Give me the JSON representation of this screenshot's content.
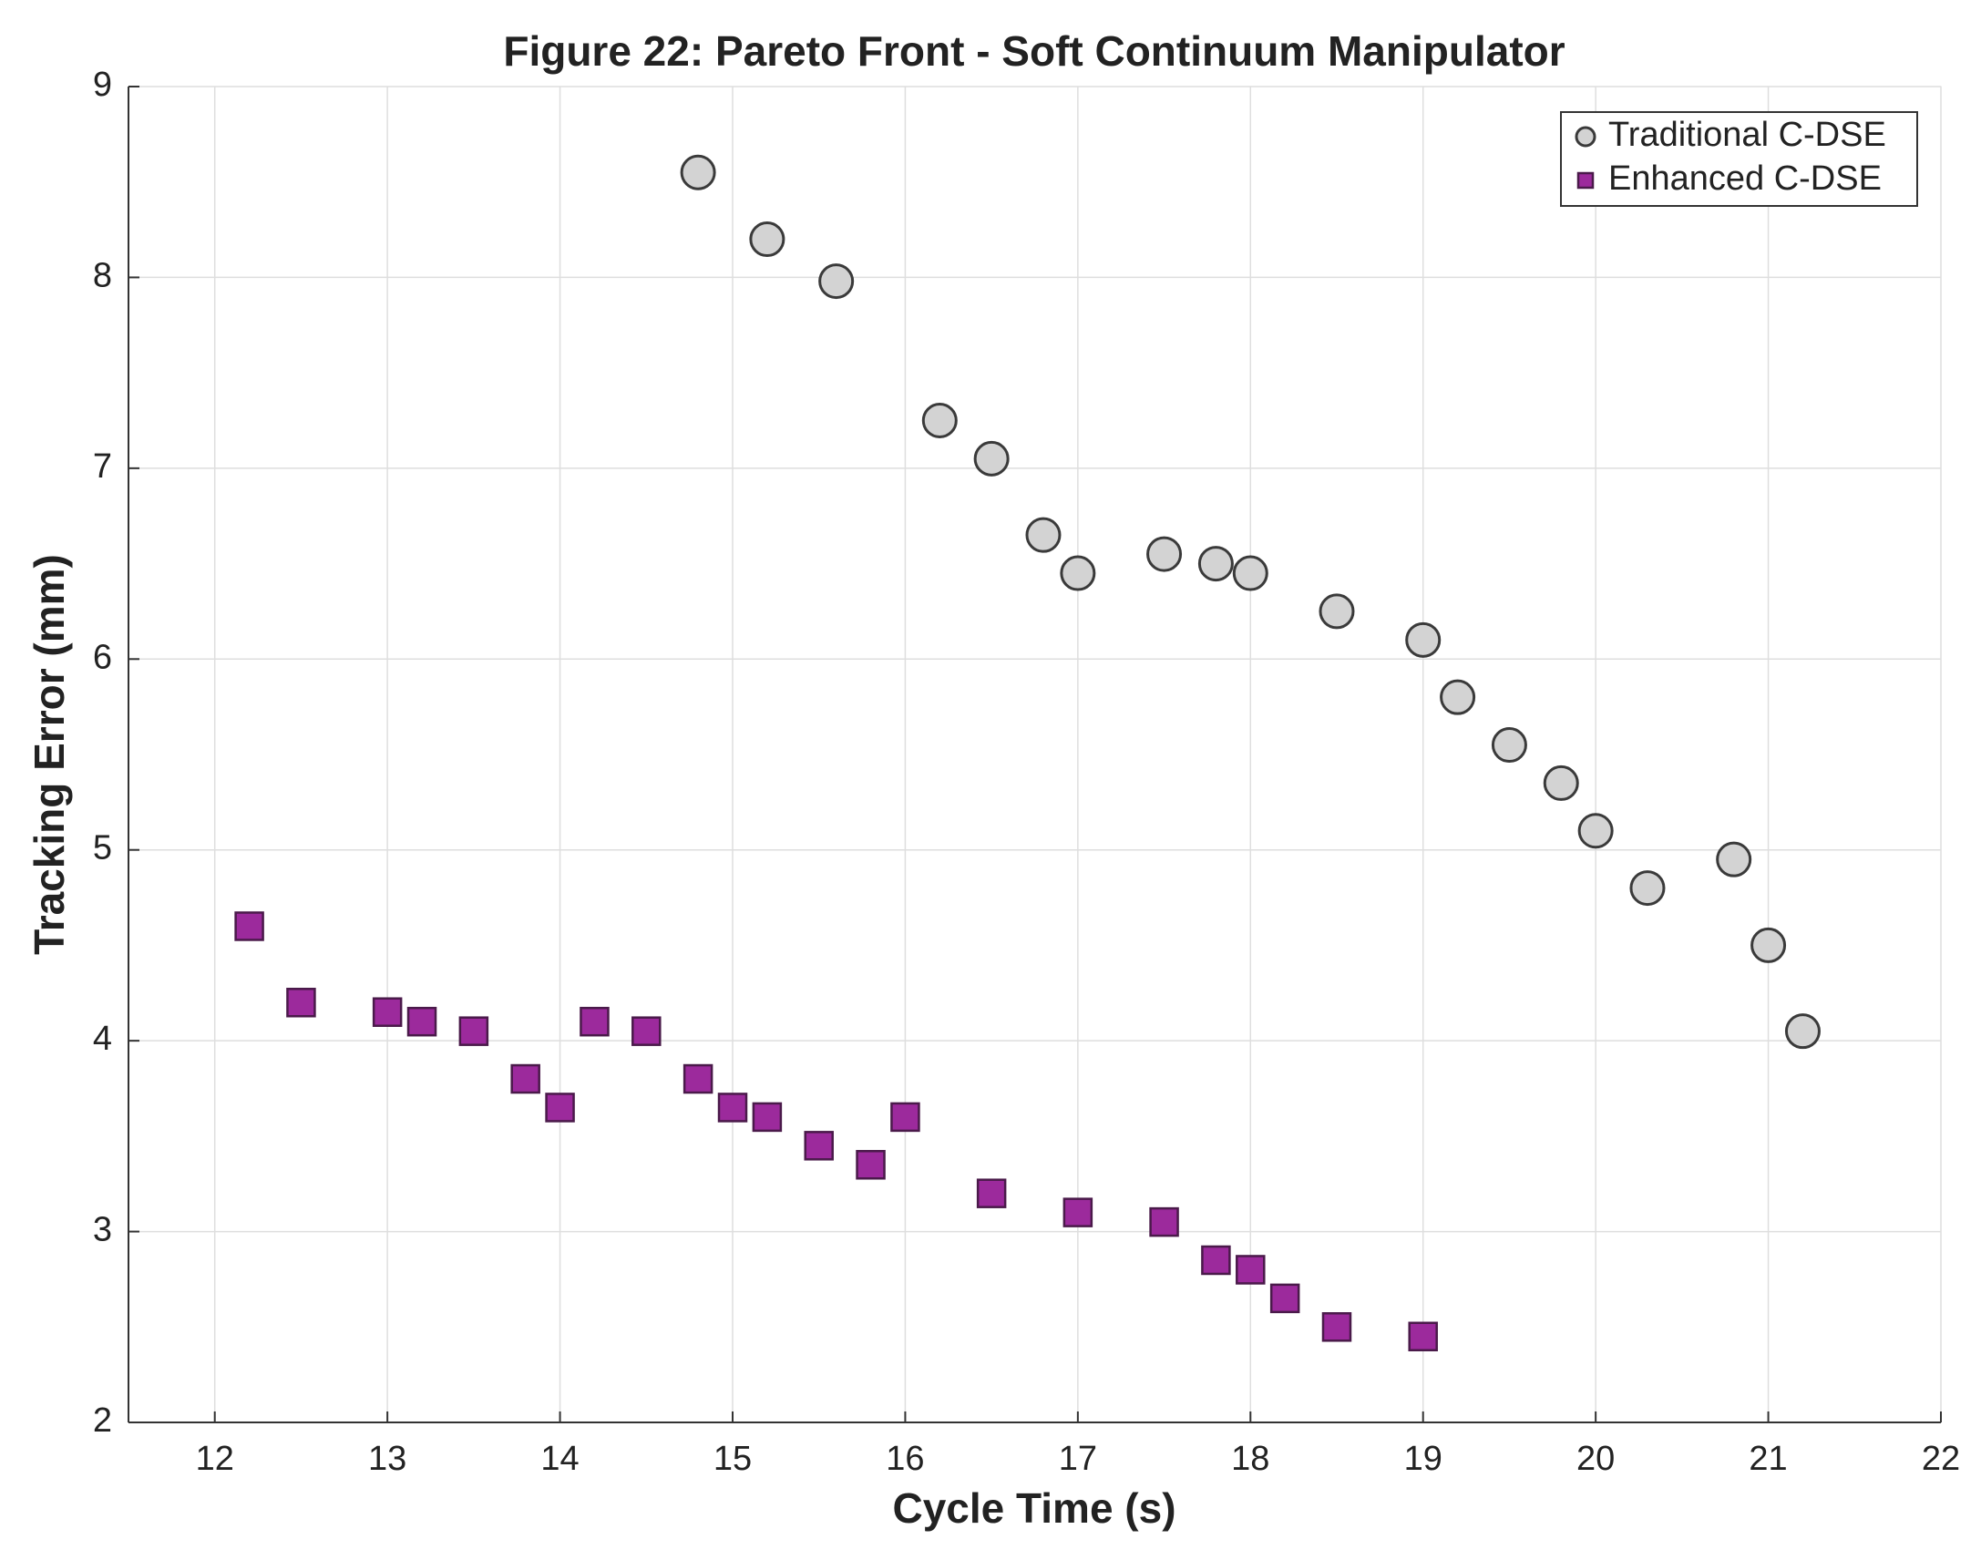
{
  "chart_data": {
    "type": "scatter",
    "title": "Figure 22: Pareto Front - Soft Continuum Manipulator",
    "x_label": "Cycle Time (s)",
    "y_label": "Tracking Error (mm)",
    "xlim": [
      11.5,
      22
    ],
    "ylim": [
      2,
      9
    ],
    "xticks": [
      12,
      13,
      14,
      15,
      16,
      17,
      18,
      19,
      20,
      21,
      22
    ],
    "yticks": [
      2,
      3,
      4,
      5,
      6,
      7,
      8,
      9
    ],
    "grid": true,
    "legend_position": "upper-right",
    "series": [
      {
        "name": "Traditional C-DSE",
        "color": "#d3d3d3",
        "marker": "circle",
        "x": [
          14.8,
          15.2,
          15.6,
          16.2,
          16.5,
          16.8,
          17.0,
          17.5,
          17.8,
          18.0,
          18.5,
          19.0,
          19.2,
          19.5,
          19.8,
          20.0,
          20.3,
          20.8,
          21.0,
          21.2
        ],
        "values": [
          8.55,
          8.2,
          7.98,
          7.25,
          7.05,
          6.65,
          6.45,
          6.55,
          6.5,
          6.45,
          6.25,
          6.1,
          5.8,
          5.55,
          5.35,
          5.1,
          4.8,
          4.95,
          4.5,
          4.05
        ]
      },
      {
        "name": "Enhanced C-DSE",
        "color": "#9c2a9c",
        "marker": "square",
        "x": [
          12.2,
          12.5,
          13.0,
          13.2,
          13.5,
          13.8,
          14.0,
          14.2,
          14.5,
          14.8,
          15.0,
          15.2,
          15.5,
          15.8,
          16.0,
          16.5,
          17.0,
          17.5,
          17.8,
          18.0,
          18.2,
          18.5,
          19.0
        ],
        "values": [
          4.6,
          4.2,
          4.15,
          4.1,
          4.05,
          3.8,
          3.65,
          4.1,
          4.05,
          3.8,
          3.65,
          3.6,
          3.45,
          3.35,
          3.6,
          3.2,
          3.1,
          3.05,
          2.85,
          2.8,
          2.65,
          2.5,
          2.45
        ]
      }
    ]
  }
}
